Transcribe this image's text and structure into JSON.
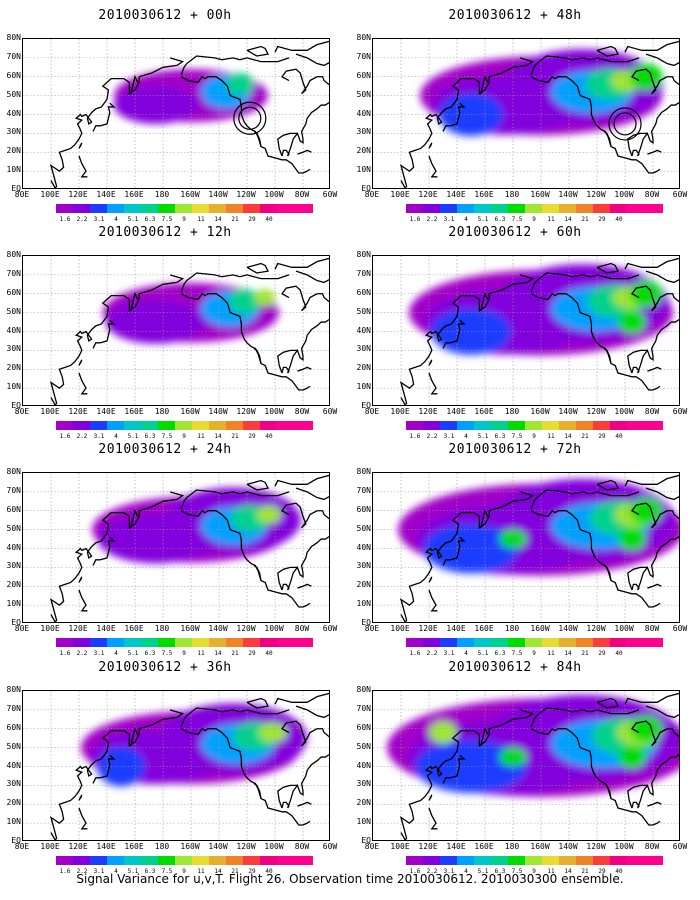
{
  "colorbar": {
    "labels": [
      "1.6",
      "2.2",
      "3.1",
      "4",
      "5.1",
      "6.3",
      "7.5",
      "9",
      "11",
      "14",
      "21",
      "29",
      "40"
    ],
    "colors": [
      "#a000c8",
      "#8200dc",
      "#1e3cff",
      "#00a0ff",
      "#00c8c8",
      "#00d28c",
      "#00dc00",
      "#a0e632",
      "#e6dc32",
      "#e6af2d",
      "#f08228",
      "#fa3c3c",
      "#f00082"
    ]
  },
  "latitude_labels": [
    "80N",
    "70N",
    "60N",
    "50N",
    "40N",
    "30N",
    "20N",
    "10N",
    "EQ"
  ],
  "longitude_labels": [
    "80E",
    "100E",
    "120E",
    "140E",
    "160E",
    "180",
    "160W",
    "140W",
    "120W",
    "100W",
    "80W",
    "60W"
  ],
  "panels": [
    {
      "id": "p00",
      "title": "2010030612 + 00h",
      "forecast_hour": 0,
      "target_circles": [
        {
          "lon": -118,
          "lat": 38
        }
      ]
    },
    {
      "id": "p12",
      "title": "2010030612 + 12h",
      "forecast_hour": 12,
      "target_circles": []
    },
    {
      "id": "p24",
      "title": "2010030612 + 24h",
      "forecast_hour": 24,
      "target_circles": []
    },
    {
      "id": "p36",
      "title": "2010030612 + 36h",
      "forecast_hour": 36,
      "target_circles": []
    },
    {
      "id": "p48",
      "title": "2010030612 + 48h",
      "forecast_hour": 48,
      "target_circles": [
        {
          "lon": -100,
          "lat": 35
        }
      ]
    },
    {
      "id": "p60",
      "title": "2010030612 + 60h",
      "forecast_hour": 60,
      "target_circles": []
    },
    {
      "id": "p72",
      "title": "2010030612 + 72h",
      "forecast_hour": 72,
      "target_circles": []
    },
    {
      "id": "p84",
      "title": "2010030612 + 84h",
      "forecast_hour": 84,
      "target_circles": []
    }
  ],
  "footer": "Signal Variance for u,v,T. Flight 26. Observation time 2010030612. 2010030300 ensemble."
}
